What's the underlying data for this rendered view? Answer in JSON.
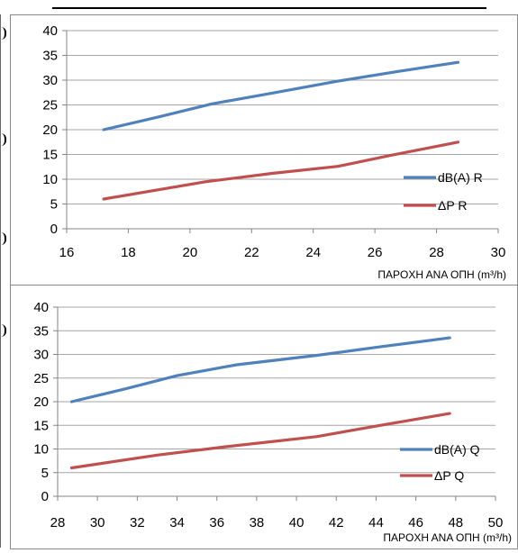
{
  "colors": {
    "blue": "#4f81bd",
    "red": "#c0504d",
    "grid": "#a6a6a6",
    "axis": "#868686",
    "text": "#000000"
  },
  "chart_data": [
    {
      "type": "line",
      "title": "",
      "xlabel": "ΠΑΡΟΧΗ ΑΝΑ ΟΠΗ (m³/h)",
      "ylabel": "",
      "xlim": [
        16,
        30
      ],
      "ylim": [
        0,
        40
      ],
      "xticks": [
        16,
        18,
        20,
        22,
        24,
        26,
        28,
        30
      ],
      "yticks": [
        0,
        5,
        10,
        15,
        20,
        25,
        30,
        35,
        40
      ],
      "grid": "horizontal",
      "legend": "right",
      "series": [
        {
          "name": "dB(A) R",
          "color": "#4f81bd",
          "points": [
            [
              17.2,
              20
            ],
            [
              19,
              22.6
            ],
            [
              20.7,
              25.2
            ],
            [
              22.5,
              27.2
            ],
            [
              24.8,
              29.8
            ],
            [
              26.8,
              31.8
            ],
            [
              28.7,
              33.6
            ]
          ]
        },
        {
          "name": "ΔP R",
          "color": "#c0504d",
          "points": [
            [
              17.2,
              6
            ],
            [
              20.5,
              9.5
            ],
            [
              22.7,
              11.2
            ],
            [
              24.8,
              12.6
            ],
            [
              26.5,
              14.8
            ],
            [
              28.7,
              17.5
            ]
          ]
        }
      ]
    },
    {
      "type": "line",
      "title": "",
      "xlabel": "ΠΑΡΟΧΗ ΑΝΑ ΟΠΗ (m³/h)",
      "ylabel": "",
      "xlim": [
        28,
        50
      ],
      "ylim": [
        0,
        40
      ],
      "xticks": [
        28,
        30,
        32,
        34,
        36,
        38,
        40,
        42,
        44,
        46,
        48,
        50
      ],
      "yticks": [
        0,
        5,
        10,
        15,
        20,
        25,
        30,
        35,
        40
      ],
      "grid": "horizontal",
      "legend": "right",
      "series": [
        {
          "name": "dB(A) Q",
          "color": "#4f81bd",
          "points": [
            [
              28.7,
              20
            ],
            [
              31.3,
              22.6
            ],
            [
              34,
              25.5
            ],
            [
              37,
              27.8
            ],
            [
              41,
              29.8
            ],
            [
              44.2,
              31.6
            ],
            [
              47.7,
              33.5
            ]
          ]
        },
        {
          "name": "ΔP Q",
          "color": "#c0504d",
          "points": [
            [
              28.7,
              6
            ],
            [
              33,
              8.7
            ],
            [
              36.5,
              10.5
            ],
            [
              41,
              12.6
            ],
            [
              44.5,
              15.2
            ],
            [
              47.7,
              17.5
            ]
          ]
        }
      ]
    }
  ]
}
